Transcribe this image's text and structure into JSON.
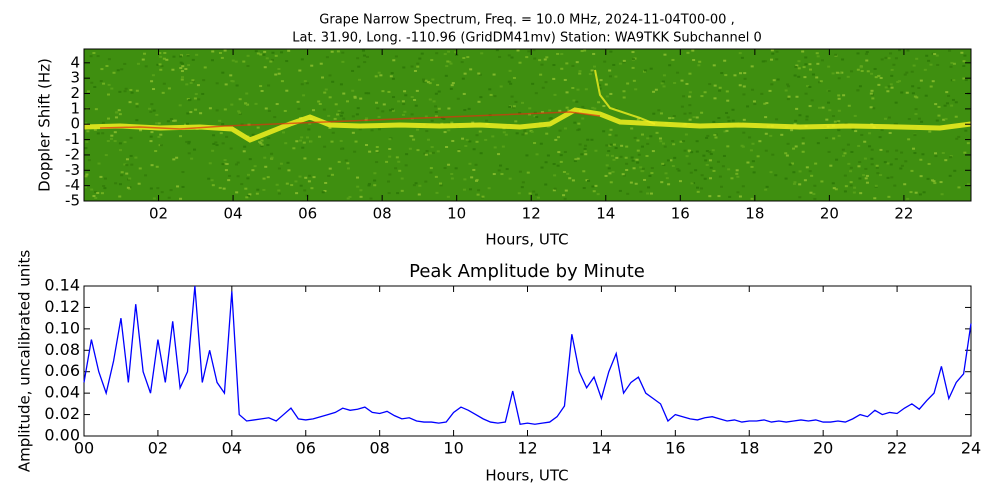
{
  "chart_data": [
    {
      "type": "heatmap",
      "title_lines": [
        "Grape Narrow Spectrum, Freq. = 10.0 MHz, 2024-11-04T00-00 ,",
        "Lat.  31.90, Long. -110.96 (GridDM41mv) Station: WA9TKK Subchannel 0"
      ],
      "xlabel": "Hours, UTC",
      "ylabel": "Doppler Shift (Hz)",
      "xlim": [
        0,
        23.8
      ],
      "ylim": [
        -5,
        4.9
      ],
      "xticks": [
        {
          "value": 2,
          "label": "02"
        },
        {
          "value": 4,
          "label": "04"
        },
        {
          "value": 6,
          "label": "06"
        },
        {
          "value": 8,
          "label": "08"
        },
        10,
        12,
        14,
        16,
        18,
        20,
        22
      ],
      "yticks": [
        -5,
        -4,
        -3,
        -2,
        -1,
        0,
        1,
        2,
        3,
        4
      ]
    },
    {
      "type": "line",
      "title": "Peak Amplitude by Minute",
      "xlabel": "Hours, UTC",
      "ylabel": "Amplitude, uncalibrated units",
      "xlim": [
        0,
        24
      ],
      "ylim": [
        0,
        0.14
      ],
      "xticks": [
        {
          "value": 0,
          "label": "00"
        },
        {
          "value": 2,
          "label": "02"
        },
        {
          "value": 4,
          "label": "04"
        },
        {
          "value": 6,
          "label": "06"
        },
        {
          "value": 8,
          "label": "08"
        },
        10,
        12,
        14,
        16,
        18,
        20,
        22,
        24
      ],
      "yticks": [
        {
          "value": 0,
          "label": "0.00"
        },
        0.02,
        0.04,
        0.06,
        0.08,
        {
          "value": 0.1,
          "label": "0.10"
        },
        0.12,
        0.14
      ],
      "x": [
        0,
        0.2,
        0.4,
        0.6,
        0.8,
        1,
        1.2,
        1.4,
        1.6,
        1.8,
        2,
        2.2,
        2.4,
        2.6,
        2.8,
        3,
        3.2,
        3.4,
        3.6,
        3.8,
        4,
        4.2,
        4.4,
        4.6,
        4.8,
        5,
        5.2,
        5.4,
        5.6,
        5.8,
        6,
        6.2,
        6.4,
        6.6,
        6.8,
        7,
        7.2,
        7.4,
        7.6,
        7.8,
        8,
        8.2,
        8.4,
        8.6,
        8.8,
        9,
        9.2,
        9.4,
        9.6,
        9.8,
        10,
        10.2,
        10.4,
        10.6,
        10.8,
        11,
        11.2,
        11.4,
        11.6,
        11.8,
        12,
        12.2,
        12.4,
        12.6,
        12.8,
        13,
        13.2,
        13.4,
        13.6,
        13.8,
        14,
        14.2,
        14.4,
        14.6,
        14.8,
        15,
        15.2,
        15.4,
        15.6,
        15.8,
        16,
        16.2,
        16.4,
        16.6,
        16.8,
        17,
        17.2,
        17.4,
        17.6,
        17.8,
        18,
        18.2,
        18.4,
        18.6,
        18.8,
        19,
        19.2,
        19.4,
        19.6,
        19.8,
        20,
        20.2,
        20.4,
        20.6,
        20.8,
        21,
        21.2,
        21.4,
        21.6,
        21.8,
        22,
        22.2,
        22.4,
        22.6,
        22.8,
        23,
        23.2,
        23.4,
        23.6,
        23.8,
        24
      ],
      "series": [
        {
          "color": "#0000ff",
          "values": [
            0.05,
            0.09,
            0.06,
            0.04,
            0.07,
            0.11,
            0.05,
            0.123,
            0.06,
            0.04,
            0.09,
            0.05,
            0.107,
            0.045,
            0.06,
            0.14,
            0.05,
            0.08,
            0.05,
            0.04,
            0.135,
            0.02,
            0.014,
            0.015,
            0.016,
            0.017,
            0.014,
            0.02,
            0.026,
            0.016,
            0.015,
            0.016,
            0.018,
            0.02,
            0.022,
            0.026,
            0.024,
            0.025,
            0.027,
            0.022,
            0.021,
            0.023,
            0.019,
            0.016,
            0.017,
            0.014,
            0.013,
            0.013,
            0.012,
            0.013,
            0.022,
            0.027,
            0.024,
            0.02,
            0.016,
            0.013,
            0.012,
            0.013,
            0.042,
            0.011,
            0.012,
            0.011,
            0.012,
            0.013,
            0.018,
            0.028,
            0.095,
            0.06,
            0.045,
            0.055,
            0.035,
            0.06,
            0.077,
            0.04,
            0.05,
            0.055,
            0.04,
            0.035,
            0.03,
            0.014,
            0.02,
            0.018,
            0.016,
            0.015,
            0.017,
            0.018,
            0.016,
            0.014,
            0.015,
            0.013,
            0.014,
            0.014,
            0.015,
            0.013,
            0.014,
            0.013,
            0.014,
            0.015,
            0.014,
            0.015,
            0.013,
            0.013,
            0.014,
            0.013,
            0.016,
            0.02,
            0.018,
            0.024,
            0.02,
            0.022,
            0.021,
            0.026,
            0.03,
            0.025,
            0.033,
            0.04,
            0.065,
            0.035,
            0.05,
            0.058,
            0.105
          ]
        }
      ]
    }
  ]
}
